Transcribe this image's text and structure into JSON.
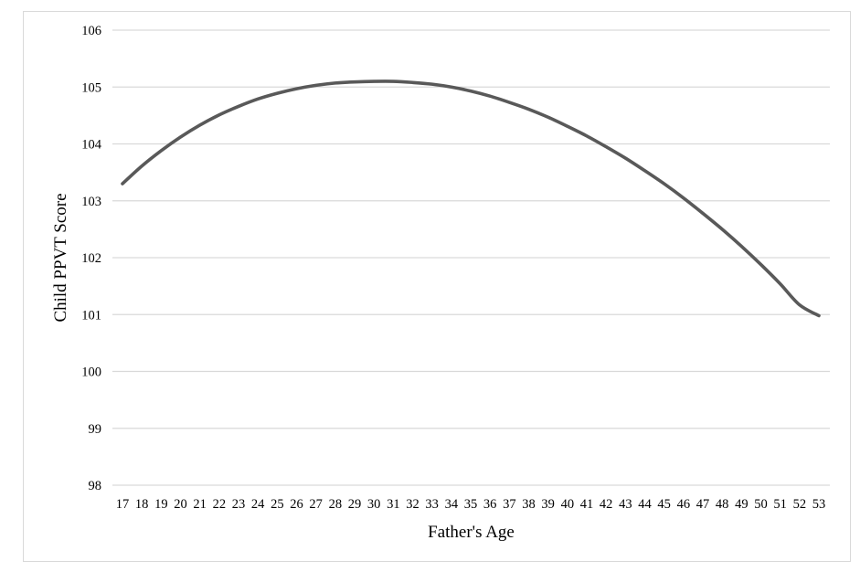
{
  "chart_data": {
    "type": "line",
    "title": "",
    "xlabel": "Father's Age",
    "ylabel": "Child PPVT Score",
    "x": [
      17,
      18,
      19,
      20,
      21,
      22,
      23,
      24,
      25,
      26,
      27,
      28,
      29,
      30,
      31,
      32,
      33,
      34,
      35,
      36,
      37,
      38,
      39,
      40,
      41,
      42,
      43,
      44,
      45,
      46,
      47,
      48,
      49,
      50,
      51,
      52,
      53
    ],
    "y_ticks": [
      98,
      99,
      100,
      101,
      102,
      103,
      104,
      105,
      106
    ],
    "ylim": [
      98,
      106
    ],
    "grid": true,
    "legend": "none",
    "series": [
      {
        "name": "",
        "color": "#595959",
        "values": [
          103.3,
          103.61,
          103.88,
          104.12,
          104.33,
          104.51,
          104.66,
          104.79,
          104.89,
          104.97,
          105.03,
          105.07,
          105.09,
          105.1,
          105.1,
          105.08,
          105.05,
          105.0,
          104.93,
          104.84,
          104.73,
          104.61,
          104.47,
          104.31,
          104.14,
          103.95,
          103.75,
          103.53,
          103.3,
          103.05,
          102.78,
          102.5,
          102.2,
          101.88,
          101.54,
          101.17,
          100.98
        ]
      }
    ]
  }
}
